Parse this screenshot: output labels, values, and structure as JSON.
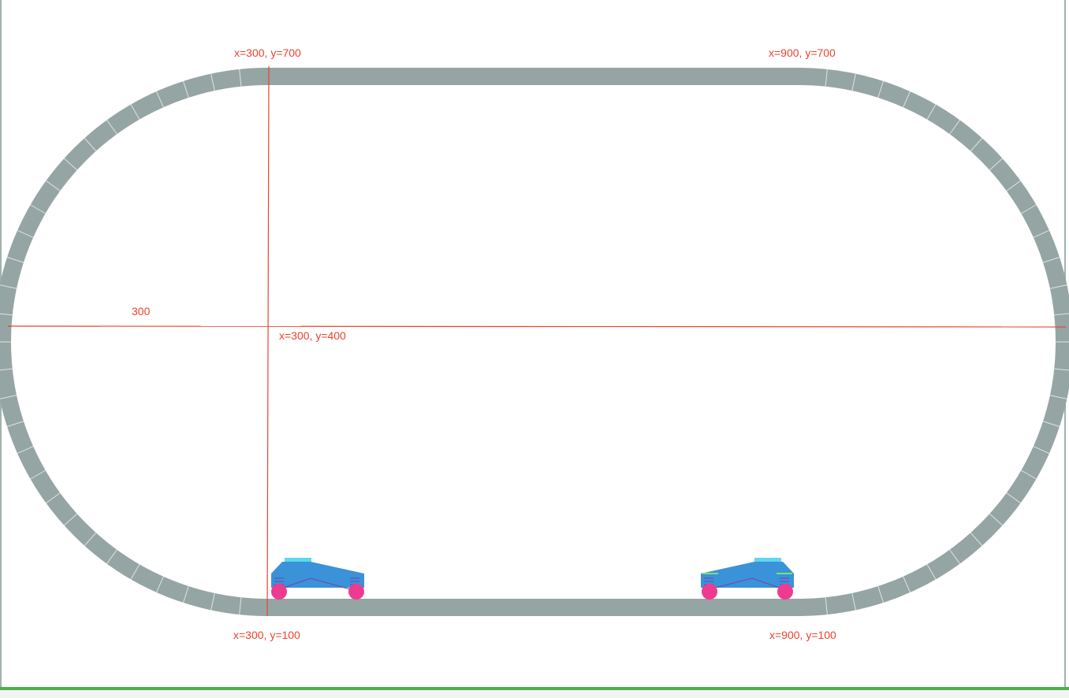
{
  "labels": {
    "top_left": "x=300, y=700",
    "top_right": "x=900, y=700",
    "bottom_left": "x=300, y=100",
    "bottom_right": "x=900, y=100",
    "center": "x=300, y=400",
    "radius": "300"
  },
  "colors": {
    "track": "#95a5a3",
    "guide": "#e8442e",
    "car_body": "#3a92d8",
    "car_roof": "#5fd7ee",
    "wheel": "#ee3b8f",
    "status_bar": "#4caf50"
  }
}
